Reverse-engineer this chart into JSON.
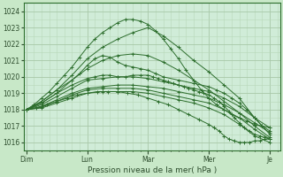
{
  "bg_color": "#c8e8c8",
  "plot_bg_color": "#d0ecd8",
  "grid_color_major": "#a8c8a8",
  "grid_color_minor": "#b8d8b8",
  "line_color": "#2d6e2d",
  "ylim": [
    1015.5,
    1024.5
  ],
  "yticks": [
    1016,
    1017,
    1018,
    1019,
    1020,
    1021,
    1022,
    1023,
    1024
  ],
  "xlabel": "Pression niveau de la mer( hPa )",
  "day_labels": [
    "Dim",
    "Lun",
    "Mar",
    "Mer",
    "Je"
  ],
  "day_positions": [
    0,
    48,
    96,
    144,
    192
  ],
  "xlim": [
    -2,
    200
  ],
  "line_data": [
    {
      "x": [
        0,
        6,
        12,
        18,
        24,
        30,
        36,
        42,
        48,
        54,
        60,
        66,
        72,
        78,
        84,
        90,
        96,
        102,
        108,
        114,
        120,
        126,
        132,
        138,
        144,
        150,
        156,
        162,
        168,
        174,
        180,
        186,
        192
      ],
      "y": [
        1018,
        1018.3,
        1018.7,
        1019.1,
        1019.6,
        1020.1,
        1020.6,
        1021.2,
        1021.8,
        1022.3,
        1022.7,
        1023.0,
        1023.3,
        1023.5,
        1023.5,
        1023.4,
        1023.2,
        1022.8,
        1022.3,
        1021.7,
        1021.1,
        1020.4,
        1019.8,
        1019.2,
        1018.7,
        1018.3,
        1018.0,
        1017.7,
        1017.5,
        1017.3,
        1017.1,
        1017.0,
        1016.9
      ]
    },
    {
      "x": [
        0,
        12,
        24,
        36,
        48,
        60,
        72,
        84,
        96,
        108,
        120,
        132,
        144,
        156,
        168,
        180,
        192
      ],
      "y": [
        1018,
        1018.5,
        1019.2,
        1020.1,
        1021.1,
        1021.8,
        1022.3,
        1022.7,
        1023.0,
        1022.5,
        1021.8,
        1021.0,
        1020.3,
        1019.5,
        1018.7,
        1017.5,
        1016.5
      ]
    },
    {
      "x": [
        0,
        12,
        24,
        36,
        48,
        60,
        72,
        84,
        96,
        108,
        120,
        132,
        144,
        156,
        168,
        180,
        192
      ],
      "y": [
        1018,
        1018.4,
        1019.0,
        1019.8,
        1020.5,
        1021.0,
        1021.3,
        1021.4,
        1021.3,
        1020.9,
        1020.4,
        1019.8,
        1019.2,
        1018.5,
        1017.8,
        1017.0,
        1016.3
      ]
    },
    {
      "x": [
        0,
        12,
        24,
        36,
        48,
        60,
        72,
        84,
        96,
        108,
        120,
        132,
        144,
        156,
        168,
        180,
        192
      ],
      "y": [
        1018,
        1018.3,
        1018.8,
        1019.3,
        1019.8,
        1019.9,
        1020.0,
        1020.0,
        1019.9,
        1019.7,
        1019.5,
        1019.3,
        1019.1,
        1018.7,
        1018.2,
        1017.5,
        1016.9
      ]
    },
    {
      "x": [
        0,
        12,
        24,
        36,
        48,
        60,
        72,
        84,
        96,
        108,
        120,
        132,
        144,
        156,
        168,
        180,
        192
      ],
      "y": [
        1018,
        1018.2,
        1018.6,
        1019.0,
        1019.3,
        1019.4,
        1019.5,
        1019.5,
        1019.4,
        1019.3,
        1019.1,
        1018.9,
        1018.7,
        1018.3,
        1017.8,
        1017.2,
        1016.6
      ]
    },
    {
      "x": [
        0,
        12,
        24,
        36,
        48,
        60,
        72,
        84,
        96,
        108,
        120,
        132,
        144,
        156,
        168,
        180,
        192
      ],
      "y": [
        1018,
        1018.15,
        1018.5,
        1018.9,
        1019.2,
        1019.3,
        1019.3,
        1019.3,
        1019.2,
        1019.0,
        1018.8,
        1018.6,
        1018.4,
        1018.0,
        1017.5,
        1016.8,
        1016.2
      ]
    },
    {
      "x": [
        0,
        12,
        24,
        36,
        48,
        60,
        72,
        84,
        96,
        108,
        120,
        132,
        144,
        156,
        168,
        180,
        192
      ],
      "y": [
        1018,
        1018.1,
        1018.4,
        1018.7,
        1019.0,
        1019.1,
        1019.1,
        1019.1,
        1019.0,
        1018.8,
        1018.6,
        1018.4,
        1018.1,
        1017.7,
        1017.1,
        1016.4,
        1016.0
      ]
    },
    {
      "x": [
        0,
        8,
        16,
        24,
        32,
        40,
        48,
        56,
        64,
        72,
        80,
        88,
        96,
        104,
        112,
        120,
        128,
        136,
        144,
        148,
        152,
        156,
        160,
        164,
        168,
        172,
        176,
        180,
        184,
        188,
        192
      ],
      "y": [
        1018,
        1018.1,
        1018.3,
        1018.5,
        1018.7,
        1018.9,
        1019.0,
        1019.1,
        1019.1,
        1019.1,
        1019.0,
        1018.9,
        1018.7,
        1018.5,
        1018.3,
        1018.0,
        1017.7,
        1017.4,
        1017.1,
        1016.9,
        1016.7,
        1016.4,
        1016.2,
        1016.1,
        1016.0,
        1016.0,
        1016.0,
        1016.1,
        1016.1,
        1016.2,
        1016.2
      ]
    },
    {
      "x": [
        0,
        12,
        24,
        36,
        42,
        48,
        54,
        60,
        66,
        72,
        78,
        84,
        90,
        96,
        102,
        108,
        120,
        132,
        144,
        150,
        156,
        162,
        168,
        174,
        180,
        186,
        192
      ],
      "y": [
        1018,
        1018.5,
        1019.2,
        1019.8,
        1020.2,
        1020.7,
        1021.1,
        1021.3,
        1021.2,
        1020.9,
        1020.7,
        1020.6,
        1020.5,
        1020.4,
        1020.2,
        1020.0,
        1019.8,
        1019.6,
        1019.4,
        1019.2,
        1019.0,
        1018.7,
        1018.4,
        1018.0,
        1017.5,
        1017.0,
        1016.7
      ]
    },
    {
      "x": [
        0,
        12,
        24,
        36,
        48,
        54,
        60,
        66,
        72,
        78,
        84,
        90,
        96,
        100,
        104,
        108,
        112,
        116,
        120,
        124,
        128,
        132,
        136,
        140,
        144,
        148,
        152,
        156,
        160,
        164,
        168,
        172,
        176,
        180,
        184,
        188,
        192
      ],
      "y": [
        1018,
        1018.4,
        1019.0,
        1019.5,
        1019.9,
        1020.0,
        1020.1,
        1020.1,
        1020.0,
        1020.0,
        1020.1,
        1020.1,
        1020.1,
        1020.0,
        1019.9,
        1019.8,
        1019.7,
        1019.6,
        1019.5,
        1019.4,
        1019.3,
        1019.2,
        1019.1,
        1019.0,
        1018.9,
        1018.7,
        1018.5,
        1018.2,
        1017.9,
        1017.5,
        1017.2,
        1016.9,
        1016.7,
        1016.5,
        1016.4,
        1016.3,
        1016.2
      ]
    }
  ]
}
